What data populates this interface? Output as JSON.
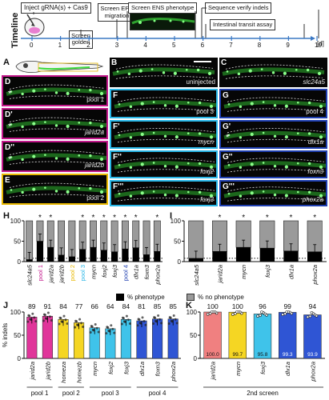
{
  "timeline": {
    "axis_title": "Timeline",
    "ticks": [
      "0",
      "1",
      "2",
      "3",
      "4",
      "5",
      "6",
      "7",
      "8",
      "9",
      "10"
    ],
    "unit": "[d]",
    "events": {
      "inject": "Inject gRNA(s) + Cas9",
      "golden": "Screen golden",
      "epc": "Screen EPC migration",
      "ens": "Screen ENS phenotype",
      "sequence": "Sequence verify indels",
      "transit": "Intestinal transit assay"
    }
  },
  "panels": {
    "A": {
      "label": "A"
    },
    "B": {
      "label": "B",
      "caption": "uninjected"
    },
    "C": {
      "label": "C",
      "caption": "slc24a5"
    },
    "D": {
      "label": "D",
      "caption": "pool 1"
    },
    "D1": {
      "label": "D'",
      "caption": "jarid2a"
    },
    "D2": {
      "label": "D''",
      "caption": "jarid2b"
    },
    "E": {
      "label": "E",
      "caption": "pool 2"
    },
    "F": {
      "label": "F",
      "caption": "pool 3"
    },
    "F1": {
      "label": "F'",
      "caption": "mycn"
    },
    "F2": {
      "label": "F''",
      "caption": "foxj2"
    },
    "F3": {
      "label": "F'''",
      "caption": "foxj3"
    },
    "G": {
      "label": "G",
      "caption": "pool 4"
    },
    "G1": {
      "label": "G'",
      "caption": "dlx1a"
    },
    "G2": {
      "label": "G''",
      "caption": "foxn3"
    },
    "G3": {
      "label": "G'''",
      "caption": "phox2a"
    }
  },
  "chart_data": [
    {
      "panel": "H",
      "type": "bar",
      "stacked": true,
      "categories": [
        "slc24a5",
        "pool 1",
        "jarid2a",
        "jarid2b",
        "pool 2",
        "pool 3",
        "mycn",
        "foxj2",
        "foxj3",
        "pool 4",
        "dlx1a",
        "foxn3",
        "phox2a"
      ],
      "category_colors": [
        "#111111",
        "#c2188b",
        "#111111",
        "#111111",
        "#e8b800",
        "#29b6e6",
        "#111111",
        "#111111",
        "#111111",
        "#1f3fb0",
        "#111111",
        "#111111",
        "#111111"
      ],
      "series": [
        {
          "name": "% phenotype",
          "values": [
            5,
            50,
            35,
            16,
            12,
            30,
            35,
            28,
            24,
            31,
            34,
            17,
            25
          ]
        },
        {
          "name": "% no phenotype",
          "values": [
            95,
            50,
            65,
            84,
            88,
            70,
            65,
            72,
            76,
            69,
            66,
            83,
            75
          ]
        }
      ],
      "significant": [
        false,
        true,
        true,
        false,
        false,
        true,
        true,
        true,
        true,
        true,
        true,
        false,
        true
      ],
      "ylim": [
        0,
        100
      ],
      "yticks": [
        0,
        50,
        100
      ],
      "dotted_line": 8
    },
    {
      "panel": "I",
      "type": "bar",
      "stacked": true,
      "categories": [
        "slc24a5",
        "jarid2a",
        "mycn",
        "foxj3",
        "dlx1a",
        "phox2a"
      ],
      "series": [
        {
          "name": "% phenotype",
          "values": [
            8,
            25,
            35,
            33,
            26,
            24
          ]
        },
        {
          "name": "% no phenotype",
          "values": [
            92,
            75,
            65,
            67,
            74,
            76
          ]
        }
      ],
      "significant": [
        false,
        true,
        true,
        true,
        true,
        true
      ],
      "ylim": [
        0,
        100
      ],
      "yticks": [
        0,
        50,
        100
      ],
      "dotted_line": 8
    },
    {
      "panel": "J",
      "type": "bar",
      "ylabel": "% indels",
      "categories": [
        "jarid2a",
        "jarid2b",
        "homeza",
        "homezb",
        "mycn",
        "foxj2",
        "foxj3",
        "dlx1a",
        "foxn3",
        "phox2a"
      ],
      "values": [
        89,
        91,
        84,
        77,
        66,
        64,
        84,
        81,
        85,
        85
      ],
      "top_labels": [
        "89",
        "91",
        "84",
        "77",
        "66",
        "64",
        "84",
        "81",
        "85",
        "85"
      ],
      "colors": [
        "#e0359a",
        "#e0359a",
        "#f5d623",
        "#f5d623",
        "#3fc3ea",
        "#3fc3ea",
        "#3fc3ea",
        "#2f55d4",
        "#2f55d4",
        "#2f55d4"
      ],
      "groups": [
        {
          "label": "pool 1",
          "members": [
            "jarid2a",
            "jarid2b"
          ]
        },
        {
          "label": "pool 2",
          "members": [
            "homeza",
            "homezb"
          ]
        },
        {
          "label": "pool 3",
          "members": [
            "mycn",
            "foxj2",
            "foxj3"
          ]
        },
        {
          "label": "pool 4",
          "members": [
            "dlx1a",
            "foxn3",
            "phox2a"
          ]
        }
      ],
      "ylim": [
        0,
        100
      ],
      "yticks": [
        0,
        50,
        100
      ]
    },
    {
      "panel": "K",
      "type": "bar",
      "categories": [
        "jarid2a",
        "mycn",
        "foxj3",
        "dlx1a",
        "phox2a"
      ],
      "values": [
        100.0,
        99.7,
        95.8,
        99.3,
        93.9
      ],
      "top_labels": [
        "100",
        "100",
        "96",
        "99",
        "94"
      ],
      "inner_labels": [
        "100.0",
        "99.7",
        "95.8",
        "99.3",
        "93.9"
      ],
      "colors": [
        "#f08080",
        "#f5d623",
        "#3fc3ea",
        "#2f55d4",
        "#2f55d4"
      ],
      "group_label": "2nd screen",
      "ylim": [
        0,
        100
      ],
      "yticks": [
        0,
        50,
        100
      ]
    }
  ],
  "legend_hi": {
    "phenotype": "% phenotype",
    "no_phenotype": "% no phenotype"
  }
}
